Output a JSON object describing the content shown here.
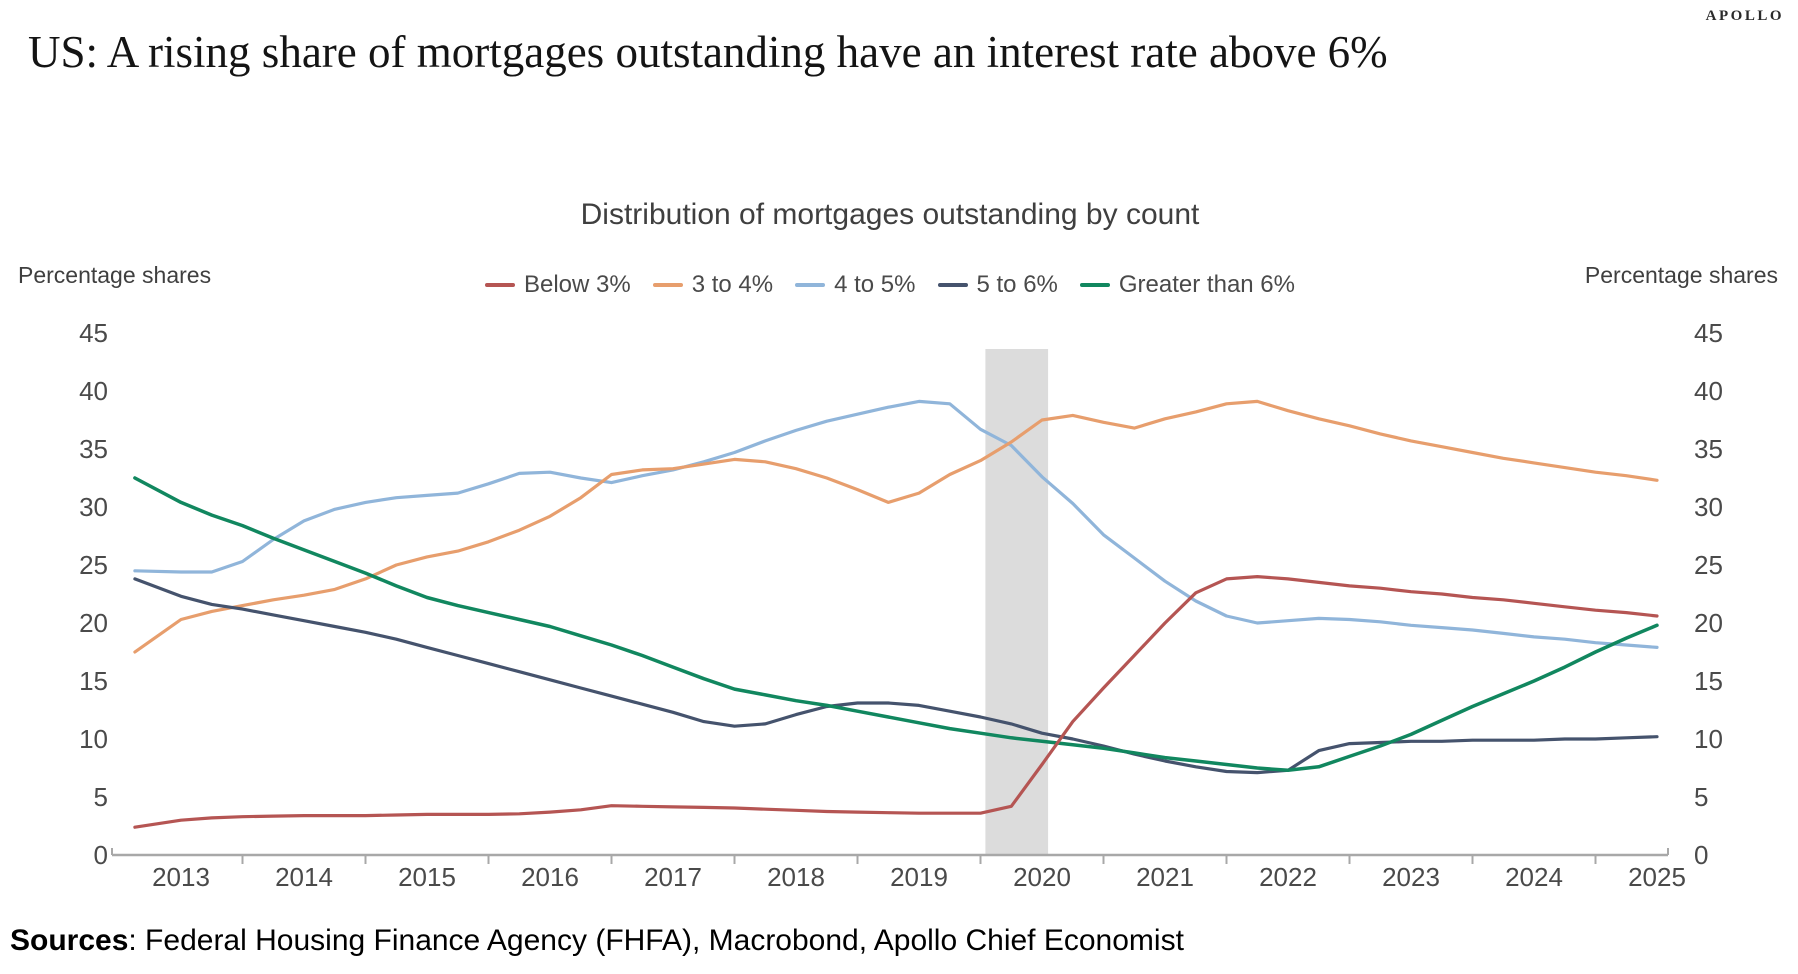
{
  "page": {
    "brand": "APOLLO",
    "title": "US: A rising share of mortgages outstanding have an interest rate above 6%",
    "sources_label": "Sources",
    "sources_rest": ": Federal Housing Finance Agency (FHFA), Macrobond, Apollo Chief Economist"
  },
  "chart_data": {
    "type": "line",
    "title": "Distribution of mortgages outstanding by count",
    "left_axis_label": "Percentage shares",
    "right_axis_label": "Percentage shares",
    "ylim": [
      0,
      45
    ],
    "yticks": [
      45,
      40,
      35,
      30,
      25,
      20,
      15,
      10,
      5,
      0
    ],
    "x_year_labels": [
      "2013",
      "2014",
      "2015",
      "2016",
      "2017",
      "2018",
      "2019",
      "2020",
      "2021",
      "2022",
      "2023",
      "2024",
      "2025"
    ],
    "xlim": [
      2012.55,
      2025.1
    ],
    "grid": false,
    "legend_position": "top",
    "recession_band": {
      "start": 2019.54,
      "end": 2020.05,
      "color": "#dcdcdc"
    },
    "x": [
      2012.625,
      2013,
      2013.25,
      2013.5,
      2013.75,
      2014,
      2014.25,
      2014.5,
      2014.75,
      2015,
      2015.25,
      2015.5,
      2015.75,
      2016,
      2016.25,
      2016.5,
      2016.75,
      2017,
      2017.25,
      2017.5,
      2017.75,
      2018,
      2018.25,
      2018.5,
      2018.75,
      2019,
      2019.25,
      2019.5,
      2019.75,
      2020,
      2020.25,
      2020.5,
      2020.75,
      2021,
      2021.25,
      2021.5,
      2021.75,
      2022,
      2022.25,
      2022.5,
      2022.75,
      2023,
      2023.25,
      2023.5,
      2023.75,
      2024,
      2024.25,
      2024.5,
      2024.75,
      2025
    ],
    "series": [
      {
        "name": "Below 3%",
        "color": "#b55553",
        "values": [
          2.4,
          3.0,
          3.2,
          3.3,
          3.35,
          3.4,
          3.4,
          3.4,
          3.45,
          3.5,
          3.5,
          3.5,
          3.55,
          3.7,
          3.9,
          4.25,
          4.2,
          4.15,
          4.1,
          4.05,
          3.95,
          3.85,
          3.75,
          3.7,
          3.65,
          3.6,
          3.6,
          3.6,
          4.2,
          7.8,
          11.5,
          14.4,
          17.2,
          20.0,
          22.6,
          23.8,
          24.0,
          23.8,
          23.5,
          23.2,
          23.0,
          22.7,
          22.5,
          22.2,
          22.0,
          21.7,
          21.4,
          21.1,
          20.9,
          20.6
        ]
      },
      {
        "name": "3 to 4%",
        "color": "#e79e6d",
        "values": [
          17.5,
          20.3,
          21.0,
          21.5,
          22.0,
          22.4,
          22.9,
          23.8,
          25.0,
          25.7,
          26.2,
          27.0,
          28.0,
          29.2,
          30.8,
          32.8,
          33.2,
          33.3,
          33.7,
          34.1,
          33.9,
          33.3,
          32.5,
          31.5,
          30.4,
          31.2,
          32.8,
          34.0,
          35.6,
          37.5,
          37.9,
          37.3,
          36.8,
          37.6,
          38.2,
          38.9,
          39.1,
          38.3,
          37.6,
          37.0,
          36.3,
          35.7,
          35.2,
          34.7,
          34.2,
          33.8,
          33.4,
          33.0,
          32.7,
          32.3
        ]
      },
      {
        "name": "4 to 5%",
        "color": "#90b5da",
        "values": [
          24.5,
          24.4,
          24.4,
          25.3,
          27.2,
          28.8,
          29.8,
          30.4,
          30.8,
          31.0,
          31.2,
          32.0,
          32.9,
          33.0,
          32.5,
          32.1,
          32.7,
          33.2,
          33.9,
          34.7,
          35.7,
          36.6,
          37.4,
          38.0,
          38.6,
          39.1,
          38.9,
          36.7,
          35.3,
          32.6,
          30.3,
          27.6,
          25.6,
          23.6,
          21.9,
          20.6,
          20.0,
          20.2,
          20.4,
          20.3,
          20.1,
          19.8,
          19.6,
          19.4,
          19.1,
          18.8,
          18.6,
          18.3,
          18.1,
          17.9
        ]
      },
      {
        "name": "5 to 6%",
        "color": "#45536d",
        "values": [
          23.8,
          22.3,
          21.6,
          21.2,
          20.7,
          20.2,
          19.7,
          19.2,
          18.6,
          17.9,
          17.2,
          16.5,
          15.8,
          15.1,
          14.4,
          13.7,
          13.0,
          12.3,
          11.5,
          11.1,
          11.3,
          12.1,
          12.8,
          13.1,
          13.1,
          12.9,
          12.4,
          11.9,
          11.3,
          10.5,
          10.0,
          9.4,
          8.7,
          8.1,
          7.6,
          7.2,
          7.1,
          7.3,
          9.0,
          9.6,
          9.7,
          9.8,
          9.8,
          9.9,
          9.9,
          9.9,
          10.0,
          10.0,
          10.1,
          10.2
        ]
      },
      {
        "name": "Greater than 6%",
        "color": "#11875f",
        "values": [
          32.5,
          30.4,
          29.3,
          28.4,
          27.3,
          26.3,
          25.3,
          24.3,
          23.2,
          22.2,
          21.5,
          20.9,
          20.3,
          19.7,
          18.9,
          18.1,
          17.2,
          16.2,
          15.2,
          14.3,
          13.8,
          13.3,
          12.9,
          12.4,
          11.9,
          11.4,
          10.9,
          10.5,
          10.1,
          9.8,
          9.5,
          9.2,
          8.8,
          8.4,
          8.1,
          7.8,
          7.5,
          7.3,
          7.6,
          8.5,
          9.4,
          10.4,
          11.6,
          12.8,
          13.9,
          15.0,
          16.2,
          17.5,
          18.7,
          19.8
        ]
      }
    ]
  }
}
